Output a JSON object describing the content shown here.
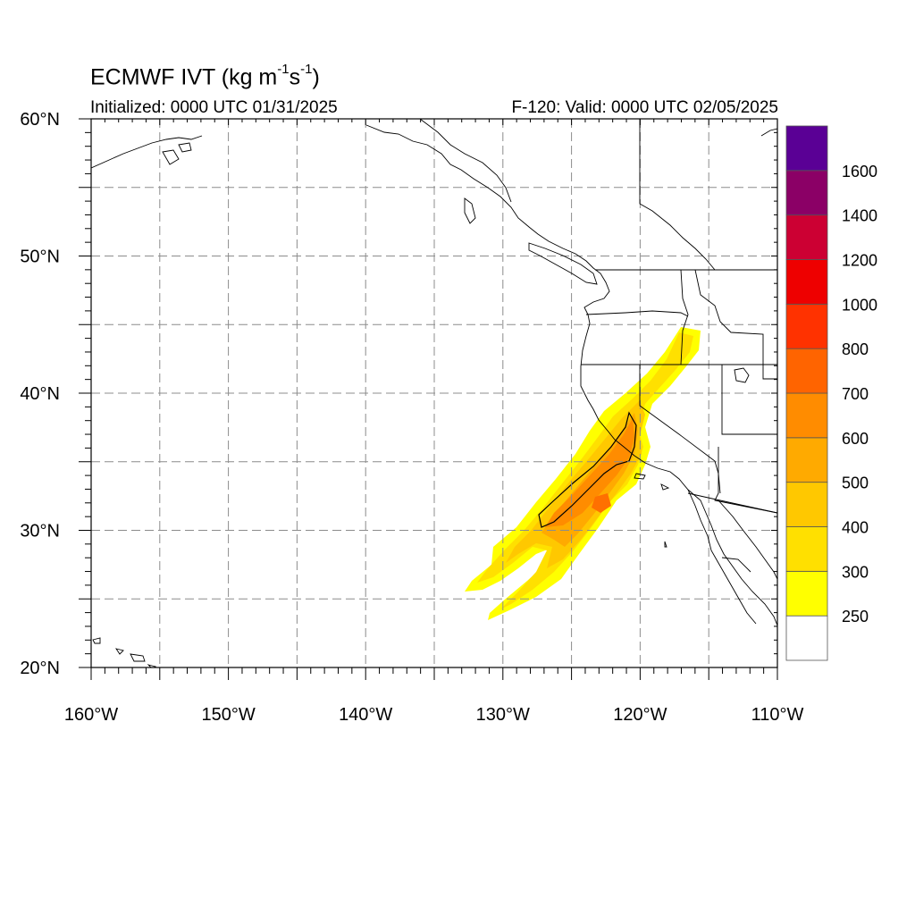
{
  "title": {
    "text": "ECMWF IVT (kg m",
    "sup1": "-1",
    "mid": "s",
    "sup2": "-1",
    "end": ")"
  },
  "subtitle_left": "Initialized: 0000 UTC 01/31/2025",
  "subtitle_right": "F-120: Valid: 0000 UTC 02/05/2025",
  "map": {
    "projection": "cylindrical equidistant",
    "lon_range": [
      -160,
      -110
    ],
    "lat_range": [
      20,
      60
    ],
    "lon_tick_labels": [
      "160°W",
      "150°W",
      "140°W",
      "130°W",
      "120°W",
      "110°W"
    ],
    "lat_tick_labels": [
      "20°N",
      "30°N",
      "40°N",
      "50°N",
      "60°N"
    ],
    "grid": "dashed gray every 5°",
    "contour_line": "IVT 700 kg m-1 s-1 outline (black)"
  },
  "colorbar": {
    "labels": [
      "250",
      "300",
      "400",
      "500",
      "600",
      "700",
      "800",
      "1000",
      "1200",
      "1400",
      "1600"
    ],
    "colors": [
      "#ffffff",
      "#ffff00",
      "#ffe000",
      "#ffc800",
      "#ffaa00",
      "#ff8c00",
      "#ff6400",
      "#ff3200",
      "#ee0000",
      "#cc0033",
      "#8b0066",
      "#5a0095"
    ]
  }
}
